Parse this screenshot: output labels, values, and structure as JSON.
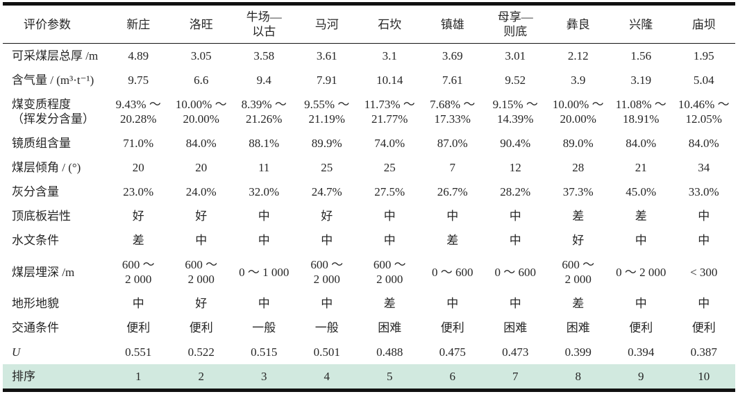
{
  "page": {
    "background_color": "#ffffff",
    "text_color": "#262626",
    "rule_color": "#111111",
    "highlight_color": "#d1e9df"
  },
  "table": {
    "columns": [
      "评价参数",
      "新庄",
      "洛旺",
      "牛场—\n以古",
      "马河",
      "石坎",
      "镇雄",
      "母享—\n则底",
      "彝良",
      "兴隆",
      "庙坝"
    ],
    "rows": [
      {
        "label": "可采煤层总厚 /m",
        "values": [
          "4.89",
          "3.05",
          "3.58",
          "3.61",
          "3.1",
          "3.69",
          "3.01",
          "2.12",
          "1.56",
          "1.95"
        ]
      },
      {
        "label": "含气量 / (m³·t⁻¹)",
        "values": [
          "9.75",
          "6.6",
          "9.4",
          "7.91",
          "10.14",
          "7.61",
          "9.52",
          "3.9",
          "3.19",
          "5.04"
        ]
      },
      {
        "label": "煤变质程度\n（挥发分含量）",
        "values": [
          "9.43% ～\n20.28%",
          "10.00% ～\n20.00%",
          "8.39% ～\n21.26%",
          "9.55% ～\n21.19%",
          "11.73% ～\n21.77%",
          "7.68% ～\n17.33%",
          "9.15% ～\n14.39%",
          "10.00% ～\n20.00%",
          "11.08% ～\n18.91%",
          "10.46% ～\n12.05%"
        ]
      },
      {
        "label": "镜质组含量",
        "values": [
          "71.0%",
          "84.0%",
          "88.1%",
          "89.9%",
          "74.0%",
          "87.0%",
          "90.4%",
          "89.0%",
          "84.0%",
          "84.0%"
        ]
      },
      {
        "label": "煤层倾角 / (°)",
        "values": [
          "20",
          "20",
          "11",
          "25",
          "25",
          "7",
          "12",
          "28",
          "21",
          "34"
        ]
      },
      {
        "label": "灰分含量",
        "values": [
          "23.0%",
          "24.0%",
          "32.0%",
          "24.7%",
          "27.5%",
          "26.7%",
          "28.2%",
          "37.3%",
          "45.0%",
          "33.0%"
        ]
      },
      {
        "label": "顶底板岩性",
        "values": [
          "好",
          "好",
          "中",
          "好",
          "中",
          "中",
          "中",
          "差",
          "差",
          "中"
        ]
      },
      {
        "label": "水文条件",
        "values": [
          "差",
          "中",
          "中",
          "中",
          "中",
          "差",
          "中",
          "好",
          "中",
          "中"
        ]
      },
      {
        "label": "煤层埋深 /m",
        "values": [
          "600 ～\n2 000",
          "600 ～\n2 000",
          "0 ～ 1 000",
          "600 ～\n2 000",
          "600 ～\n2 000",
          "0 ～ 600",
          "0 ～ 600",
          "600 ～\n2 000",
          "0 ～ 2 000",
          "< 300"
        ]
      },
      {
        "label": "地形地貌",
        "values": [
          "中",
          "好",
          "中",
          "中",
          "差",
          "中",
          "中",
          "差",
          "中",
          "中"
        ]
      },
      {
        "label": "交通条件",
        "values": [
          "便利",
          "便利",
          "一般",
          "一般",
          "困难",
          "便利",
          "困难",
          "困难",
          "便利",
          "便利"
        ]
      },
      {
        "label": "U",
        "italic": true,
        "values": [
          "0.551",
          "0.522",
          "0.515",
          "0.501",
          "0.488",
          "0.475",
          "0.473",
          "0.399",
          "0.394",
          "0.387"
        ]
      },
      {
        "label": "排序",
        "highlight": true,
        "values": [
          "1",
          "2",
          "3",
          "4",
          "5",
          "6",
          "7",
          "8",
          "9",
          "10"
        ]
      }
    ]
  }
}
